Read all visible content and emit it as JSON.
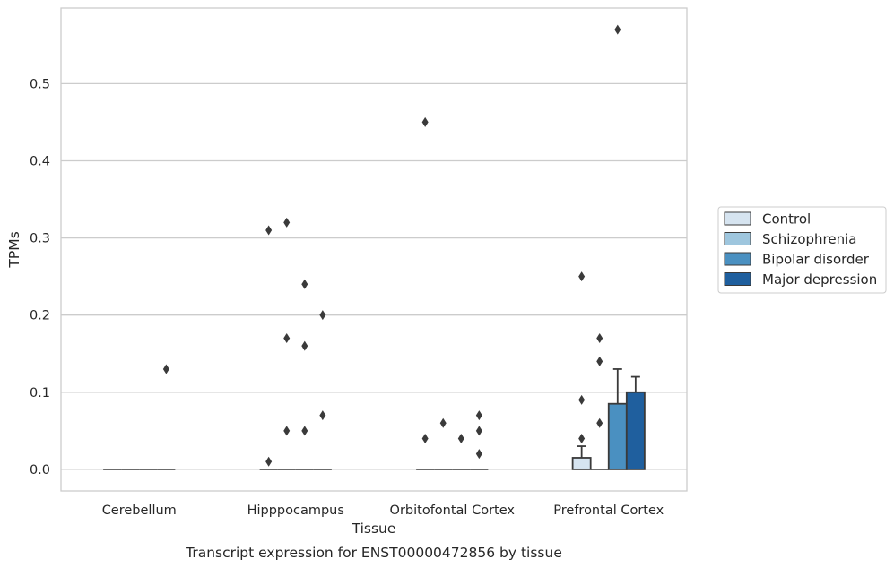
{
  "chart_data": {
    "type": "bar",
    "caption": "Transcript expression for ENST00000472856 by tissue",
    "xlabel": "Tissue",
    "ylabel": "TPMs",
    "ylim": [
      -0.028,
      0.598
    ],
    "yticks": [
      "0.0",
      "0.1",
      "0.2",
      "0.3",
      "0.4",
      "0.5"
    ],
    "grid": true,
    "legend_position": "right",
    "categories": [
      "Cerebellum",
      "Hipppocampus",
      "Orbitofontal Cortex",
      "Prefrontal Cortex"
    ],
    "series": [
      {
        "name": "Control",
        "color": "#d6e4f0",
        "values": [
          0,
          0,
          0,
          0.015
        ],
        "err_upper": [
          null,
          null,
          null,
          0.03
        ]
      },
      {
        "name": "Schizophrenia",
        "color": "#9ec6de",
        "values": [
          0,
          0,
          0,
          0
        ],
        "err_upper": [
          null,
          null,
          null,
          null
        ]
      },
      {
        "name": "Bipolar disorder",
        "color": "#4a90c1",
        "values": [
          0,
          0,
          0,
          0.085
        ],
        "err_upper": [
          null,
          null,
          null,
          0.13
        ]
      },
      {
        "name": "Major depression",
        "color": "#1f5f9e",
        "values": [
          0,
          0,
          0,
          0.1
        ],
        "err_upper": [
          null,
          null,
          null,
          0.12
        ]
      }
    ],
    "outliers": [
      {
        "category": "Cerebellum",
        "series": "Major depression",
        "values": [
          0.13
        ]
      },
      {
        "category": "Hipppocampus",
        "series": "Control",
        "values": [
          0.31,
          0.01
        ]
      },
      {
        "category": "Hipppocampus",
        "series": "Schizophrenia",
        "values": [
          0.32,
          0.17,
          0.05
        ]
      },
      {
        "category": "Hipppocampus",
        "series": "Bipolar disorder",
        "values": [
          0.24,
          0.16,
          0.05
        ]
      },
      {
        "category": "Hipppocampus",
        "series": "Major depression",
        "values": [
          0.2,
          0.07
        ]
      },
      {
        "category": "Orbitofontal Cortex",
        "series": "Control",
        "values": [
          0.45,
          0.04
        ]
      },
      {
        "category": "Orbitofontal Cortex",
        "series": "Schizophrenia",
        "values": [
          0.06
        ]
      },
      {
        "category": "Orbitofontal Cortex",
        "series": "Bipolar disorder",
        "values": [
          0.04
        ]
      },
      {
        "category": "Orbitofontal Cortex",
        "series": "Major depression",
        "values": [
          0.07,
          0.05,
          0.02
        ]
      },
      {
        "category": "Prefrontal Cortex",
        "series": "Control",
        "values": [
          0.25,
          0.09,
          0.04
        ]
      },
      {
        "category": "Prefrontal Cortex",
        "series": "Schizophrenia",
        "values": [
          0.17,
          0.14,
          0.06
        ]
      },
      {
        "category": "Prefrontal Cortex",
        "series": "Bipolar disorder",
        "values": [
          0.57
        ]
      }
    ]
  }
}
